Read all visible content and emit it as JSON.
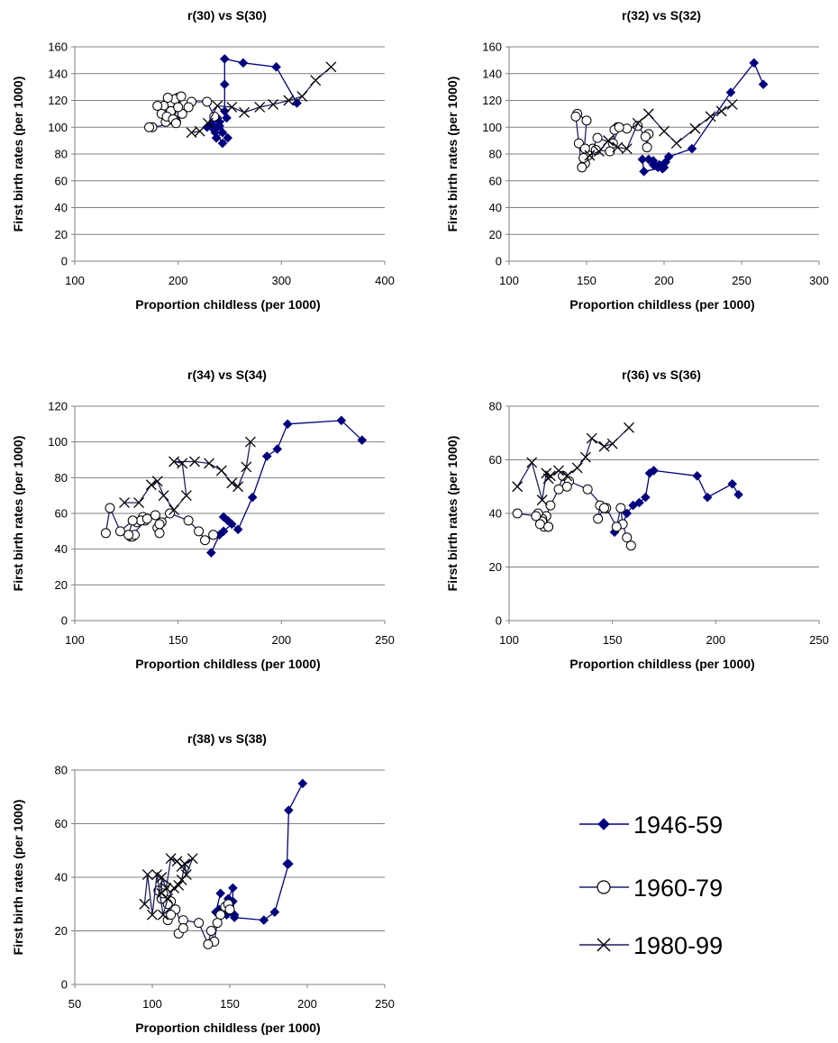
{
  "colors": {
    "s1": "#00007f",
    "s2": "#1f1f6f",
    "s3": "#1f1f5f",
    "grid": "#808080",
    "axis": "#808080"
  },
  "legend": {
    "placement": "bottom-right",
    "entries": [
      {
        "label": "1946-59",
        "marker": "diamond"
      },
      {
        "label": "1960-79",
        "marker": "circle"
      },
      {
        "label": "1980-99",
        "marker": "x"
      }
    ]
  },
  "chart_data": [
    {
      "type": "scatter",
      "title": "r(30) vs S(30)",
      "xlabel": "Proportion childless (per 1000)",
      "ylabel": "First birth rates (per 1000)",
      "xlim": [
        100,
        400
      ],
      "ylim": [
        0,
        160
      ],
      "xticks": [
        100,
        200,
        300,
        400
      ],
      "yticks": [
        0,
        20,
        40,
        60,
        80,
        100,
        120,
        140,
        160
      ],
      "grid": true,
      "series": [
        {
          "name": "1946-59",
          "x": [
            315,
            295,
            263,
            245,
            245,
            245,
            247,
            240,
            243,
            237,
            235,
            240,
            248,
            243,
            236,
            228,
            233,
            238
          ],
          "y": [
            118,
            145,
            148,
            151,
            132,
            112,
            107,
            101,
            96,
            92,
            98,
            104,
            92,
            88,
            96,
            100,
            102,
            107
          ]
        },
        {
          "name": "1960-79",
          "x": [
            235,
            228,
            213,
            210,
            204,
            198,
            193,
            200,
            197,
            190,
            186,
            193,
            188,
            180,
            184,
            189,
            195,
            200,
            203,
            198,
            175,
            172
          ],
          "y": [
            108,
            119,
            119,
            115,
            110,
            104,
            112,
            122,
            121,
            122,
            116,
            112,
            104,
            116,
            110,
            108,
            106,
            115,
            123,
            103,
            100,
            100
          ]
        },
        {
          "name": "1980-99",
          "x": [
            213,
            221,
            229,
            238,
            252,
            264,
            279,
            292,
            307,
            320,
            333,
            348
          ],
          "y": [
            96,
            97,
            103,
            116,
            115,
            111,
            115,
            117,
            120,
            123,
            135,
            145
          ]
        }
      ]
    },
    {
      "type": "scatter",
      "title": "r(32) vs S(32)",
      "xlabel": "Proportion childless (per 1000)",
      "ylabel": "First birth rates (per 1000)",
      "xlim": [
        100,
        300
      ],
      "ylim": [
        0,
        160
      ],
      "xticks": [
        100,
        150,
        200,
        250,
        300
      ],
      "yticks": [
        0,
        20,
        40,
        60,
        80,
        100,
        120,
        140,
        160
      ],
      "grid": true,
      "series": [
        {
          "name": "1946-59",
          "x": [
            264,
            258,
            243,
            218,
            203,
            201,
            199,
            196,
            193,
            190,
            193,
            197,
            200,
            187,
            186
          ],
          "y": [
            132,
            148,
            126,
            84,
            78,
            74,
            69,
            70,
            72,
            76,
            75,
            72,
            70,
            67,
            76
          ]
        },
        {
          "name": "1960-79",
          "x": [
            190,
            189,
            188,
            183,
            176,
            170,
            168,
            167,
            157,
            154,
            151,
            149,
            148,
            150,
            144,
            143,
            145,
            147,
            149,
            156,
            165,
            171
          ],
          "y": [
            95,
            85,
            93,
            101,
            99,
            100,
            98,
            88,
            92,
            84,
            79,
            73,
            77,
            105,
            110,
            108,
            88,
            70,
            84,
            83,
            82,
            100
          ]
        },
        {
          "name": "1980-99",
          "x": [
            152,
            158,
            164,
            170,
            176,
            183,
            190,
            200,
            208,
            220,
            230,
            237,
            244
          ],
          "y": [
            79,
            82,
            90,
            85,
            84,
            103,
            110,
            97,
            88,
            99,
            108,
            112,
            117
          ]
        }
      ]
    },
    {
      "type": "scatter",
      "title": "r(34) vs S(34)",
      "xlabel": "Proportion childless (per 1000)",
      "ylabel": "First birth rates (per 1000)",
      "xlim": [
        100,
        250
      ],
      "ylim": [
        0,
        120
      ],
      "xticks": [
        100,
        150,
        200,
        250
      ],
      "yticks": [
        0,
        20,
        40,
        60,
        80,
        100,
        120
      ],
      "grid": true,
      "series": [
        {
          "name": "1946-59",
          "x": [
            239,
            229,
            203,
            198,
            193,
            186,
            179,
            174,
            172,
            176,
            172,
            170,
            166
          ],
          "y": [
            101,
            112,
            110,
            96,
            92,
            69,
            51,
            56,
            58,
            54,
            50,
            48,
            38
          ]
        },
        {
          "name": "1960-79",
          "x": [
            167,
            163,
            160,
            155,
            146,
            142,
            140,
            141,
            141,
            139,
            134,
            133,
            130,
            132,
            135,
            127,
            128,
            129,
            126,
            128,
            122,
            117,
            115
          ],
          "y": [
            48,
            45,
            50,
            56,
            60,
            55,
            52,
            49,
            54,
            59,
            56,
            58,
            55,
            56,
            57,
            47,
            47,
            48,
            48,
            56,
            50,
            63,
            49
          ]
        },
        {
          "name": "1980-99",
          "x": [
            124,
            131,
            137,
            140,
            143,
            148,
            154,
            152,
            148,
            158,
            165,
            171,
            176,
            179,
            183,
            185
          ],
          "y": [
            66,
            66,
            76,
            78,
            70,
            62,
            70,
            88,
            89,
            89,
            88,
            84,
            77,
            75,
            86,
            100
          ]
        }
      ]
    },
    {
      "type": "scatter",
      "title": "r(36) vs S(36)",
      "xlabel": "Proportion childless (per 1000)",
      "ylabel": "First birth rates (per 1000)",
      "xlim": [
        100,
        250
      ],
      "ylim": [
        0,
        80
      ],
      "xticks": [
        100,
        150,
        200,
        250
      ],
      "yticks": [
        0,
        20,
        40,
        60,
        80
      ],
      "grid": true,
      "series": [
        {
          "name": "1946-59",
          "x": [
            211,
            208,
            196,
            191,
            170,
            168,
            166,
            163,
            160,
            157,
            155,
            153,
            151
          ],
          "y": [
            47,
            51,
            46,
            54,
            56,
            55,
            46,
            44,
            43,
            40,
            36,
            35,
            33
          ]
        },
        {
          "name": "1960-79",
          "x": [
            159,
            157,
            155,
            154,
            152,
            147,
            144,
            143,
            146,
            138,
            129,
            128,
            126,
            124,
            120,
            118,
            119,
            117,
            116,
            114,
            116,
            115,
            119,
            113,
            104
          ],
          "y": [
            28,
            31,
            36,
            42,
            35,
            42,
            43,
            38,
            42,
            49,
            52,
            50,
            54,
            49,
            43,
            39,
            35,
            35,
            38,
            40,
            37,
            36,
            35,
            39,
            40
          ]
        },
        {
          "name": "1980-99",
          "x": [
            104,
            111,
            116,
            118,
            119,
            120,
            124,
            128,
            133,
            137,
            140,
            146,
            150,
            158
          ],
          "y": [
            50,
            59,
            45,
            55,
            53,
            54,
            56,
            54,
            57,
            61,
            68,
            65,
            66,
            72
          ]
        }
      ]
    },
    {
      "type": "scatter",
      "title": "r(38) vs S(38)",
      "xlabel": "Proportion childless (per 1000)",
      "ylabel": "First birth rates (per 1000)",
      "xlim": [
        50,
        250
      ],
      "ylim": [
        0,
        80
      ],
      "xticks": [
        50,
        100,
        150,
        200,
        250
      ],
      "yticks": [
        0,
        20,
        40,
        60,
        80
      ],
      "grid": true,
      "series": [
        {
          "name": "1946-59",
          "x": [
            197,
            188,
            187,
            188,
            179,
            172,
            153,
            153,
            152,
            152,
            149,
            148,
            147,
            146,
            143,
            142,
            141,
            144
          ],
          "y": [
            75,
            65,
            45,
            45,
            27,
            24,
            25,
            26,
            31,
            36,
            32,
            26,
            28,
            27,
            28,
            27,
            27,
            34
          ]
        },
        {
          "name": "1960-79",
          "x": [
            147,
            149,
            150,
            144,
            142,
            140,
            138,
            136,
            130,
            120,
            117,
            120,
            115,
            112,
            110,
            112,
            108,
            110,
            106,
            104,
            108,
            107
          ],
          "y": [
            29,
            30,
            28,
            26,
            23,
            16,
            20,
            15,
            23,
            24,
            19,
            21,
            28,
            31,
            24,
            26,
            32,
            30,
            32,
            35,
            37,
            34
          ]
        },
        {
          "name": "1980-99",
          "x": [
            95,
            97,
            100,
            103,
            107,
            110,
            114,
            117,
            119,
            121,
            122,
            126,
            119,
            116,
            112,
            109,
            106,
            106
          ],
          "y": [
            30,
            41,
            26,
            41,
            26,
            32,
            36,
            37,
            39,
            45,
            41,
            47,
            44,
            46,
            47,
            36,
            40,
            34
          ]
        }
      ]
    }
  ]
}
